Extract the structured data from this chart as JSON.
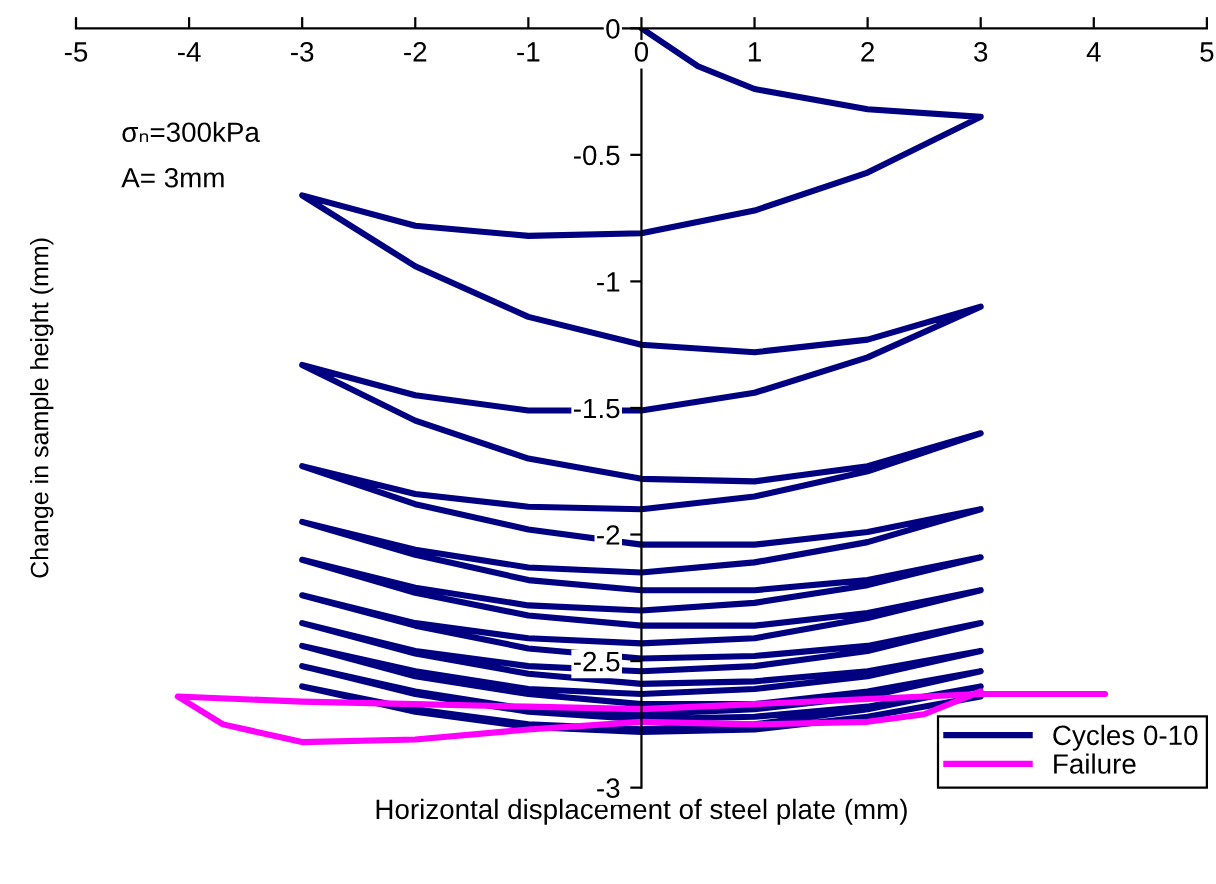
{
  "chart_data": {
    "type": "line",
    "xlabel": "Horizontal displacement of steel plate (mm)",
    "ylabel": "Change in sample height (mm)",
    "annotations": [
      "σₙ=300kPa",
      "A= 3mm"
    ],
    "xlim": [
      -5,
      5
    ],
    "xticks": [
      -5,
      -4,
      -3,
      -2,
      -1,
      0,
      1,
      2,
      3,
      4,
      5
    ],
    "ylim": [
      -3,
      0
    ],
    "yticks": [
      0,
      -0.5,
      -1,
      -1.5,
      -2,
      -2.5,
      -3
    ],
    "grid": false,
    "legend": "bottom right",
    "marker": "none",
    "line_style": "solid",
    "series": [
      {
        "name": "Cycles 0-10",
        "color": "#000080",
        "x": [
          0,
          0.5,
          1,
          2,
          3,
          2,
          1,
          0,
          -1,
          -2,
          -3,
          -2,
          -1,
          0,
          1,
          2,
          3,
          2,
          1,
          0,
          -1,
          -2,
          -3,
          -2,
          -1,
          0,
          1,
          2,
          3,
          2,
          1,
          0,
          -1,
          -2,
          -3,
          -2,
          -1,
          0,
          1,
          2,
          3,
          2,
          1,
          0,
          -1,
          -2,
          -3,
          -2,
          -1,
          0,
          1,
          2,
          3,
          2,
          1,
          0,
          -1,
          -2,
          -3,
          -2,
          -1,
          0,
          1,
          2,
          3,
          2,
          1,
          0,
          -1,
          -2,
          -3,
          -2,
          -1,
          0,
          1,
          2,
          3,
          2,
          1,
          0,
          -1,
          -2,
          -3,
          -2,
          -1,
          0,
          1,
          2,
          3,
          2,
          1,
          0,
          -1,
          -2,
          -3,
          -2,
          -1,
          0,
          1,
          2,
          3,
          2,
          1,
          0,
          -1,
          -2,
          -3,
          -2,
          -1,
          0,
          1,
          2,
          3,
          2,
          1,
          0,
          -1,
          -2,
          -3,
          -2,
          -1,
          0,
          1,
          2,
          3
        ],
        "values": [
          0,
          -0.15,
          -0.24,
          -0.32,
          -0.35,
          -0.57,
          -0.72,
          -0.81,
          -0.82,
          -0.78,
          -0.66,
          -0.94,
          -1.14,
          -1.25,
          -1.28,
          -1.23,
          -1.1,
          -1.3,
          -1.44,
          -1.51,
          -1.51,
          -1.45,
          -1.33,
          -1.55,
          -1.7,
          -1.78,
          -1.79,
          -1.73,
          -1.6,
          -1.75,
          -1.85,
          -1.9,
          -1.89,
          -1.84,
          -1.73,
          -1.88,
          -1.98,
          -2.04,
          -2.04,
          -1.99,
          -1.9,
          -2.03,
          -2.11,
          -2.15,
          -2.13,
          -2.06,
          -1.95,
          -2.08,
          -2.18,
          -2.22,
          -2.22,
          -2.18,
          -2.09,
          -2.2,
          -2.27,
          -2.3,
          -2.28,
          -2.21,
          -2.1,
          -2.23,
          -2.32,
          -2.36,
          -2.36,
          -2.31,
          -2.22,
          -2.33,
          -2.41,
          -2.43,
          -2.41,
          -2.35,
          -2.24,
          -2.36,
          -2.45,
          -2.49,
          -2.48,
          -2.44,
          -2.35,
          -2.46,
          -2.52,
          -2.54,
          -2.52,
          -2.46,
          -2.35,
          -2.47,
          -2.55,
          -2.59,
          -2.58,
          -2.54,
          -2.46,
          -2.56,
          -2.61,
          -2.63,
          -2.61,
          -2.54,
          -2.44,
          -2.56,
          -2.63,
          -2.67,
          -2.67,
          -2.62,
          -2.54,
          -2.64,
          -2.69,
          -2.71,
          -2.69,
          -2.62,
          -2.52,
          -2.63,
          -2.7,
          -2.73,
          -2.72,
          -2.68,
          -2.6,
          -2.69,
          -2.75,
          -2.77,
          -2.75,
          -2.69,
          -2.6,
          -2.7,
          -2.76,
          -2.78,
          -2.77,
          -2.72,
          -2.64
        ]
      },
      {
        "name": "Failure",
        "color": "#ff00ff",
        "x": [
          3,
          2.5,
          2,
          1,
          0,
          -1,
          -2,
          -3,
          -3.7,
          -4.1,
          -3,
          -2,
          -1,
          0,
          1,
          2,
          3,
          4.1
        ],
        "values": [
          -2.62,
          -2.71,
          -2.74,
          -2.75,
          -2.74,
          -2.77,
          -2.81,
          -2.82,
          -2.75,
          -2.64,
          -2.66,
          -2.67,
          -2.68,
          -2.69,
          -2.67,
          -2.65,
          -2.63,
          -2.63
        ]
      }
    ]
  }
}
